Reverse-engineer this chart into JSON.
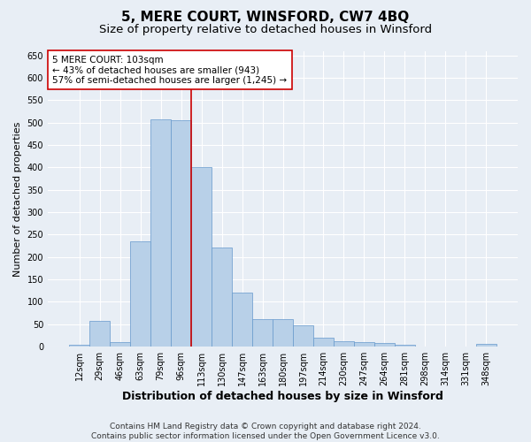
{
  "title": "5, MERE COURT, WINSFORD, CW7 4BQ",
  "subtitle": "Size of property relative to detached houses in Winsford",
  "xlabel": "Distribution of detached houses by size in Winsford",
  "ylabel": "Number of detached properties",
  "categories": [
    "12sqm",
    "29sqm",
    "46sqm",
    "63sqm",
    "79sqm",
    "96sqm",
    "113sqm",
    "130sqm",
    "147sqm",
    "163sqm",
    "180sqm",
    "197sqm",
    "214sqm",
    "230sqm",
    "247sqm",
    "264sqm",
    "281sqm",
    "298sqm",
    "314sqm",
    "331sqm",
    "348sqm"
  ],
  "values": [
    5,
    57,
    10,
    235,
    507,
    505,
    400,
    222,
    120,
    62,
    62,
    47,
    20,
    12,
    10,
    8,
    5,
    1,
    1,
    1,
    7
  ],
  "bar_color": "#b8d0e8",
  "bar_edgecolor": "#6699cc",
  "vline_color": "#cc0000",
  "vline_pos": 5.5,
  "annotation_text": "5 MERE COURT: 103sqm\n← 43% of detached houses are smaller (943)\n57% of semi-detached houses are larger (1,245) →",
  "annotation_box_facecolor": "#ffffff",
  "annotation_box_edgecolor": "#cc0000",
  "ylim": [
    0,
    660
  ],
  "yticks": [
    0,
    50,
    100,
    150,
    200,
    250,
    300,
    350,
    400,
    450,
    500,
    550,
    600,
    650
  ],
  "footer_line1": "Contains HM Land Registry data © Crown copyright and database right 2024.",
  "footer_line2": "Contains public sector information licensed under the Open Government Licence v3.0.",
  "title_fontsize": 11,
  "subtitle_fontsize": 9.5,
  "xlabel_fontsize": 9,
  "ylabel_fontsize": 8,
  "tick_fontsize": 7,
  "annot_fontsize": 7.5,
  "footer_fontsize": 6.5,
  "bg_color": "#e8eef5",
  "plot_bg_color": "#e8eef5"
}
